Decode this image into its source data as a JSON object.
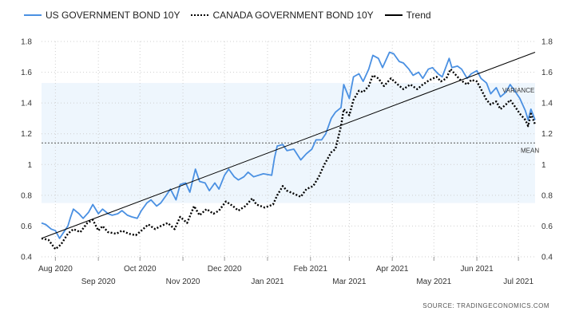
{
  "chart_data": {
    "type": "line",
    "title": "",
    "legend_position": "top-left",
    "grid": true,
    "ylim": [
      0.4,
      1.8
    ],
    "y_ticks": [
      "0.4",
      "0.6",
      "0.8",
      "1",
      "1.2",
      "1.4",
      "1.6",
      "1.8"
    ],
    "y_tick_values": [
      0.4,
      0.6,
      0.8,
      1.0,
      1.2,
      1.4,
      1.6,
      1.8
    ],
    "x_ticks": [
      "Aug 2020",
      "Sep 2020",
      "Oct 2020",
      "Nov 2020",
      "Dec 2020",
      "Jan 2021",
      "Feb 2021",
      "Mar 2021",
      "Apr 2021",
      "May 2021",
      "Jun 2021",
      "Jul 2021"
    ],
    "x_range": [
      "2020-07-22",
      "2021-07-13"
    ],
    "mean": 1.14,
    "variance_band": [
      0.75,
      1.53
    ],
    "mean_label": "MEAN",
    "variance_label": "VARIANCE",
    "series": [
      {
        "name": "US GOVERNMENT BOND 10Y",
        "color": "#4a90e2",
        "style": "solid",
        "points": [
          [
            "2020-07-22",
            0.62
          ],
          [
            "2020-07-25",
            0.61
          ],
          [
            "2020-07-29",
            0.58
          ],
          [
            "2020-08-01",
            0.57
          ],
          [
            "2020-08-04",
            0.52
          ],
          [
            "2020-08-07",
            0.56
          ],
          [
            "2020-08-10",
            0.6
          ],
          [
            "2020-08-12",
            0.66
          ],
          [
            "2020-08-14",
            0.71
          ],
          [
            "2020-08-18",
            0.68
          ],
          [
            "2020-08-21",
            0.65
          ],
          [
            "2020-08-25",
            0.69
          ],
          [
            "2020-08-28",
            0.74
          ],
          [
            "2020-09-01",
            0.68
          ],
          [
            "2020-09-04",
            0.71
          ],
          [
            "2020-09-08",
            0.68
          ],
          [
            "2020-09-11",
            0.67
          ],
          [
            "2020-09-15",
            0.68
          ],
          [
            "2020-09-18",
            0.7
          ],
          [
            "2020-09-22",
            0.67
          ],
          [
            "2020-09-25",
            0.66
          ],
          [
            "2020-09-29",
            0.65
          ],
          [
            "2020-10-02",
            0.7
          ],
          [
            "2020-10-06",
            0.75
          ],
          [
            "2020-10-09",
            0.77
          ],
          [
            "2020-10-13",
            0.73
          ],
          [
            "2020-10-16",
            0.75
          ],
          [
            "2020-10-20",
            0.8
          ],
          [
            "2020-10-23",
            0.84
          ],
          [
            "2020-10-27",
            0.77
          ],
          [
            "2020-10-30",
            0.87
          ],
          [
            "2020-11-03",
            0.88
          ],
          [
            "2020-11-06",
            0.82
          ],
          [
            "2020-11-10",
            0.97
          ],
          [
            "2020-11-13",
            0.89
          ],
          [
            "2020-11-17",
            0.88
          ],
          [
            "2020-11-20",
            0.83
          ],
          [
            "2020-11-24",
            0.88
          ],
          [
            "2020-11-27",
            0.84
          ],
          [
            "2020-12-01",
            0.93
          ],
          [
            "2020-12-04",
            0.97
          ],
          [
            "2020-12-08",
            0.92
          ],
          [
            "2020-12-11",
            0.9
          ],
          [
            "2020-12-15",
            0.92
          ],
          [
            "2020-12-18",
            0.95
          ],
          [
            "2020-12-22",
            0.92
          ],
          [
            "2020-12-29",
            0.94
          ],
          [
            "2021-01-04",
            0.93
          ],
          [
            "2021-01-06",
            1.04
          ],
          [
            "2021-01-08",
            1.12
          ],
          [
            "2021-01-12",
            1.13
          ],
          [
            "2021-01-15",
            1.09
          ],
          [
            "2021-01-20",
            1.1
          ],
          [
            "2021-01-25",
            1.03
          ],
          [
            "2021-01-29",
            1.07
          ],
          [
            "2021-02-02",
            1.1
          ],
          [
            "2021-02-05",
            1.16
          ],
          [
            "2021-02-09",
            1.16
          ],
          [
            "2021-02-12",
            1.2
          ],
          [
            "2021-02-16",
            1.3
          ],
          [
            "2021-02-19",
            1.34
          ],
          [
            "2021-02-23",
            1.37
          ],
          [
            "2021-02-25",
            1.52
          ],
          [
            "2021-03-01",
            1.43
          ],
          [
            "2021-03-04",
            1.57
          ],
          [
            "2021-03-08",
            1.59
          ],
          [
            "2021-03-11",
            1.54
          ],
          [
            "2021-03-15",
            1.62
          ],
          [
            "2021-03-18",
            1.71
          ],
          [
            "2021-03-22",
            1.69
          ],
          [
            "2021-03-25",
            1.63
          ],
          [
            "2021-03-30",
            1.73
          ],
          [
            "2021-04-02",
            1.72
          ],
          [
            "2021-04-06",
            1.67
          ],
          [
            "2021-04-09",
            1.66
          ],
          [
            "2021-04-13",
            1.62
          ],
          [
            "2021-04-16",
            1.58
          ],
          [
            "2021-04-20",
            1.6
          ],
          [
            "2021-04-23",
            1.56
          ],
          [
            "2021-04-27",
            1.62
          ],
          [
            "2021-04-30",
            1.63
          ],
          [
            "2021-05-04",
            1.59
          ],
          [
            "2021-05-07",
            1.57
          ],
          [
            "2021-05-12",
            1.69
          ],
          [
            "2021-05-14",
            1.63
          ],
          [
            "2021-05-18",
            1.64
          ],
          [
            "2021-05-21",
            1.62
          ],
          [
            "2021-05-25",
            1.56
          ],
          [
            "2021-05-28",
            1.59
          ],
          [
            "2021-06-01",
            1.61
          ],
          [
            "2021-06-04",
            1.56
          ],
          [
            "2021-06-08",
            1.53
          ],
          [
            "2021-06-11",
            1.46
          ],
          [
            "2021-06-15",
            1.5
          ],
          [
            "2021-06-18",
            1.44
          ],
          [
            "2021-06-22",
            1.47
          ],
          [
            "2021-06-25",
            1.52
          ],
          [
            "2021-06-29",
            1.47
          ],
          [
            "2021-07-02",
            1.43
          ],
          [
            "2021-07-06",
            1.35
          ],
          [
            "2021-07-08",
            1.29
          ],
          [
            "2021-07-10",
            1.36
          ],
          [
            "2021-07-13",
            1.29
          ]
        ]
      },
      {
        "name": "CANADA GOVERNMENT BOND 10Y",
        "color": "#000000",
        "style": "dotted",
        "points": [
          [
            "2020-07-22",
            0.52
          ],
          [
            "2020-07-27",
            0.51
          ],
          [
            "2020-08-01",
            0.45
          ],
          [
            "2020-08-05",
            0.48
          ],
          [
            "2020-08-10",
            0.55
          ],
          [
            "2020-08-14",
            0.58
          ],
          [
            "2020-08-19",
            0.56
          ],
          [
            "2020-08-24",
            0.62
          ],
          [
            "2020-08-28",
            0.64
          ],
          [
            "2020-09-01",
            0.57
          ],
          [
            "2020-09-04",
            0.6
          ],
          [
            "2020-09-08",
            0.56
          ],
          [
            "2020-09-14",
            0.55
          ],
          [
            "2020-09-18",
            0.57
          ],
          [
            "2020-09-23",
            0.55
          ],
          [
            "2020-09-28",
            0.54
          ],
          [
            "2020-10-02",
            0.57
          ],
          [
            "2020-10-07",
            0.61
          ],
          [
            "2020-10-12",
            0.58
          ],
          [
            "2020-10-16",
            0.6
          ],
          [
            "2020-10-21",
            0.62
          ],
          [
            "2020-10-26",
            0.58
          ],
          [
            "2020-10-30",
            0.66
          ],
          [
            "2020-11-04",
            0.62
          ],
          [
            "2020-11-09",
            0.73
          ],
          [
            "2020-11-13",
            0.67
          ],
          [
            "2020-11-18",
            0.71
          ],
          [
            "2020-11-23",
            0.68
          ],
          [
            "2020-11-27",
            0.7
          ],
          [
            "2020-12-02",
            0.76
          ],
          [
            "2020-12-07",
            0.73
          ],
          [
            "2020-12-11",
            0.7
          ],
          [
            "2020-12-16",
            0.73
          ],
          [
            "2020-12-21",
            0.78
          ],
          [
            "2020-12-24",
            0.74
          ],
          [
            "2020-12-30",
            0.72
          ],
          [
            "2021-01-05",
            0.74
          ],
          [
            "2021-01-08",
            0.8
          ],
          [
            "2021-01-12",
            0.86
          ],
          [
            "2021-01-15",
            0.83
          ],
          [
            "2021-01-20",
            0.81
          ],
          [
            "2021-01-25",
            0.79
          ],
          [
            "2021-01-29",
            0.84
          ],
          [
            "2021-02-03",
            0.86
          ],
          [
            "2021-02-07",
            0.92
          ],
          [
            "2021-02-11",
            1.0
          ],
          [
            "2021-02-16",
            1.08
          ],
          [
            "2021-02-19",
            1.1
          ],
          [
            "2021-02-23",
            1.25
          ],
          [
            "2021-02-25",
            1.36
          ],
          [
            "2021-03-01",
            1.32
          ],
          [
            "2021-03-04",
            1.42
          ],
          [
            "2021-03-08",
            1.48
          ],
          [
            "2021-03-11",
            1.47
          ],
          [
            "2021-03-15",
            1.51
          ],
          [
            "2021-03-18",
            1.58
          ],
          [
            "2021-03-22",
            1.56
          ],
          [
            "2021-03-26",
            1.51
          ],
          [
            "2021-03-31",
            1.56
          ],
          [
            "2021-04-05",
            1.52
          ],
          [
            "2021-04-09",
            1.49
          ],
          [
            "2021-04-14",
            1.52
          ],
          [
            "2021-04-19",
            1.49
          ],
          [
            "2021-04-23",
            1.52
          ],
          [
            "2021-04-28",
            1.55
          ],
          [
            "2021-05-03",
            1.57
          ],
          [
            "2021-05-06",
            1.54
          ],
          [
            "2021-05-10",
            1.56
          ],
          [
            "2021-05-13",
            1.62
          ],
          [
            "2021-05-17",
            1.58
          ],
          [
            "2021-05-20",
            1.55
          ],
          [
            "2021-05-25",
            1.52
          ],
          [
            "2021-05-28",
            1.55
          ],
          [
            "2021-06-01",
            1.54
          ],
          [
            "2021-06-04",
            1.49
          ],
          [
            "2021-06-08",
            1.42
          ],
          [
            "2021-06-11",
            1.39
          ],
          [
            "2021-06-15",
            1.41
          ],
          [
            "2021-06-18",
            1.36
          ],
          [
            "2021-06-22",
            1.39
          ],
          [
            "2021-06-25",
            1.42
          ],
          [
            "2021-06-29",
            1.37
          ],
          [
            "2021-07-02",
            1.33
          ],
          [
            "2021-07-06",
            1.29
          ],
          [
            "2021-07-08",
            1.25
          ],
          [
            "2021-07-10",
            1.33
          ],
          [
            "2021-07-13",
            1.26
          ]
        ]
      },
      {
        "name": "Trend",
        "color": "#000000",
        "style": "solid",
        "points": [
          [
            "2020-07-22",
            0.52
          ],
          [
            "2021-07-13",
            1.73
          ]
        ]
      }
    ]
  },
  "source": "SOURCE:  TRADINGECONOMICS.COM"
}
